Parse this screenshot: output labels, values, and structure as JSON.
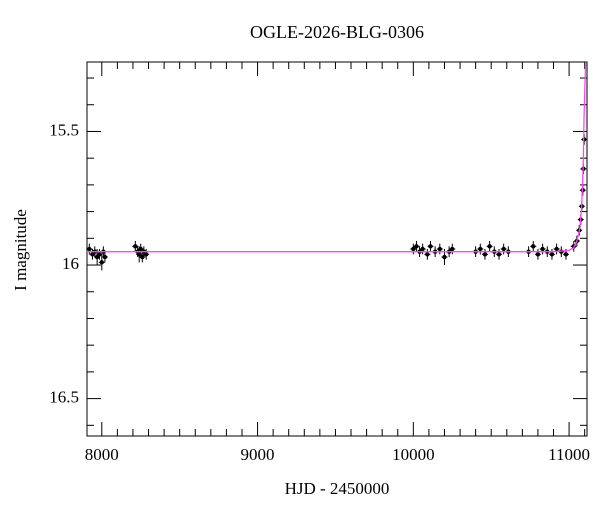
{
  "chart_data": {
    "type": "scatter",
    "title": "OGLE-2026-BLG-0306",
    "x_label": "HJD - 2450000",
    "y_label": "I magnitude",
    "xlim": [
      7905,
      11115
    ],
    "ylim": [
      16.64,
      15.24
    ],
    "xticks": [
      8000,
      9000,
      10000,
      11000
    ],
    "yticks": [
      15.5,
      16,
      16.5
    ],
    "x_minor_ticks": [
      8100,
      8200,
      8300,
      8400,
      8500,
      8600,
      8700,
      8800,
      8900,
      9100,
      9200,
      9300,
      9400,
      9500,
      9600,
      9700,
      9800,
      9900,
      10100,
      10200,
      10300,
      10400,
      10500,
      10600,
      10700,
      10800,
      10900,
      11100
    ],
    "y_minor_ticks": [
      15.3,
      15.4,
      15.6,
      15.7,
      15.8,
      15.9,
      16.1,
      16.2,
      16.3,
      16.4,
      16.6
    ],
    "points": {
      "color": "#000000",
      "x": [
        7920,
        7940,
        7955,
        7970,
        7985,
        8000,
        8010,
        8020,
        8215,
        8230,
        8240,
        8250,
        8260,
        8270,
        8285,
        10000,
        10020,
        10040,
        10060,
        10090,
        10110,
        10140,
        10170,
        10200,
        10230,
        10250,
        10400,
        10430,
        10460,
        10490,
        10520,
        10550,
        10580,
        10610,
        10740,
        10770,
        10800,
        10830,
        10860,
        10890,
        10920,
        10950,
        10980,
        11030,
        11050,
        11065,
        11075,
        11082,
        11088,
        11092,
        11097
      ],
      "y": [
        15.94,
        15.96,
        15.95,
        15.97,
        15.96,
        15.99,
        15.95,
        15.97,
        15.93,
        15.95,
        15.96,
        15.94,
        15.97,
        15.95,
        15.96,
        15.94,
        15.93,
        15.95,
        15.94,
        15.96,
        15.93,
        15.95,
        15.94,
        15.97,
        15.95,
        15.94,
        15.95,
        15.94,
        15.96,
        15.93,
        15.95,
        15.96,
        15.94,
        15.95,
        15.95,
        15.93,
        15.96,
        15.94,
        15.95,
        15.96,
        15.94,
        15.95,
        15.96,
        15.93,
        15.91,
        15.87,
        15.83,
        15.78,
        15.72,
        15.64,
        15.53
      ],
      "errors": [
        0.02,
        0.02,
        0.02,
        0.03,
        0.02,
        0.03,
        0.02,
        0.02,
        0.02,
        0.02,
        0.03,
        0.02,
        0.02,
        0.02,
        0.02,
        0.02,
        0.02,
        0.02,
        0.02,
        0.02,
        0.02,
        0.02,
        0.02,
        0.03,
        0.02,
        0.02,
        0.02,
        0.02,
        0.02,
        0.02,
        0.02,
        0.02,
        0.02,
        0.02,
        0.02,
        0.02,
        0.02,
        0.02,
        0.02,
        0.02,
        0.02,
        0.02,
        0.02,
        0.02,
        0.02,
        0.02,
        0.02,
        0.02,
        0.02,
        0.02,
        0.02
      ]
    },
    "model": {
      "color": "#ff44ff",
      "x": [
        7905,
        10900,
        11000,
        11030,
        11050,
        11070,
        11080,
        11090,
        11096,
        11102,
        11106
      ],
      "y": [
        15.95,
        15.95,
        15.945,
        15.935,
        15.91,
        15.86,
        15.79,
        15.64,
        15.45,
        15.32,
        15.24
      ]
    }
  }
}
